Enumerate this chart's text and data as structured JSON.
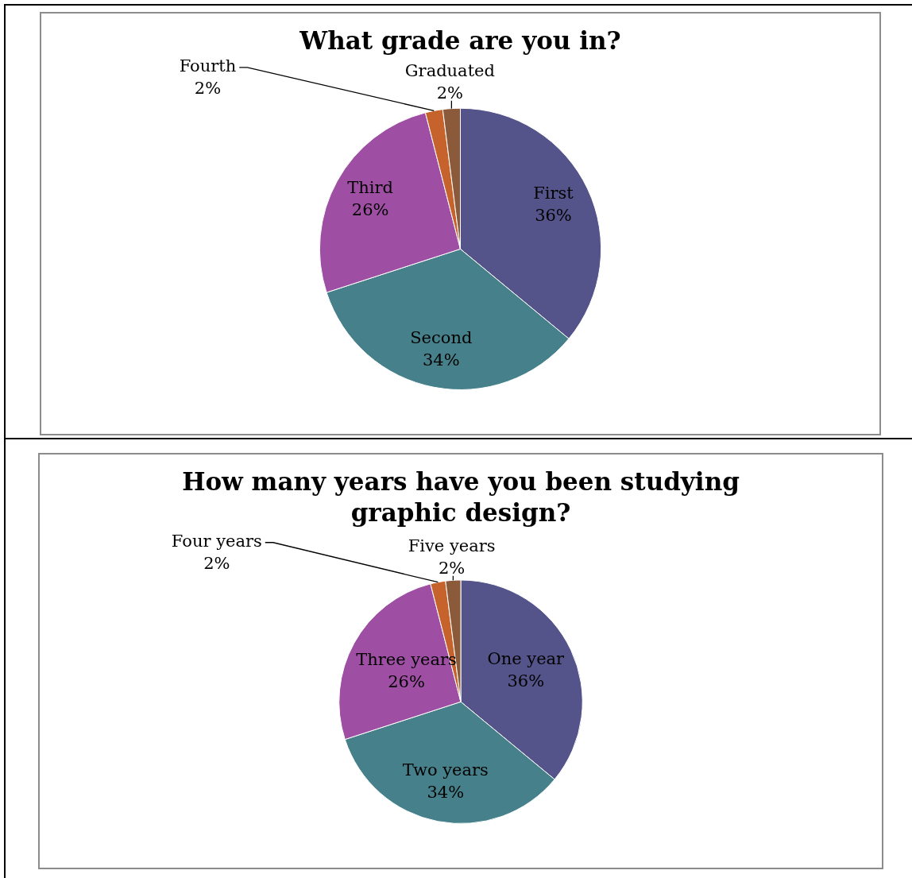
{
  "chart_data": [
    {
      "type": "pie",
      "title": "What grade are you in?",
      "categories": [
        "First",
        "Second",
        "Third",
        "Fourth",
        "Graduated"
      ],
      "values": [
        36,
        34,
        26,
        2,
        2
      ],
      "colors": [
        "#55548a",
        "#46808a",
        "#9e4fa3",
        "#c6622c",
        "#8a5a3a"
      ],
      "value_labels": [
        "36%",
        "34%",
        "26%",
        "2%",
        "2%"
      ]
    },
    {
      "type": "pie",
      "title": "How many years have you been studying graphic design?",
      "categories": [
        "One year",
        "Two years",
        "Three years",
        "Four years",
        "Five years"
      ],
      "values": [
        36,
        34,
        26,
        2,
        2
      ],
      "colors": [
        "#55548a",
        "#46808a",
        "#9e4fa3",
        "#c6622c",
        "#8a5a3a"
      ],
      "value_labels": [
        "36%",
        "34%",
        "26%",
        "2%",
        "2%"
      ]
    }
  ]
}
